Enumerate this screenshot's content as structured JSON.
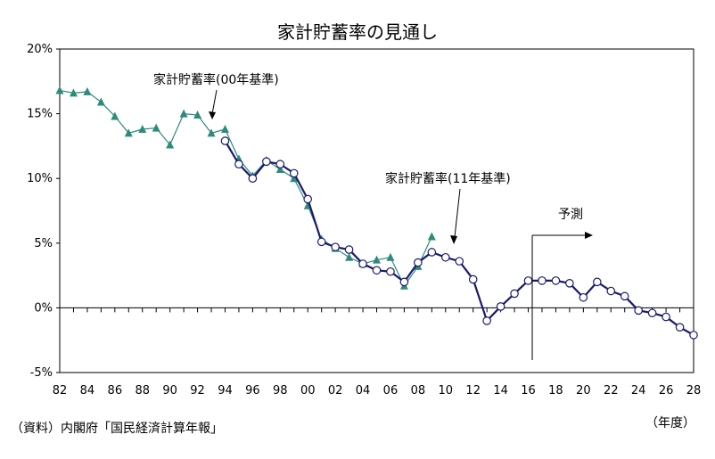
{
  "chart_data": {
    "type": "line",
    "title": "家計貯蓄率の見通し",
    "xlabel": "（年度）",
    "ylabel": "",
    "source": "（資料）内閣府「国民経済計算年報」",
    "ylim": [
      -5,
      20
    ],
    "xlim": [
      1982,
      2028
    ],
    "y_ticks": [
      "20%",
      "15%",
      "10%",
      "5%",
      "0%",
      "-5%"
    ],
    "y_tick_values": [
      20,
      15,
      10,
      5,
      0,
      -5
    ],
    "x_ticks": [
      "82",
      "84",
      "86",
      "88",
      "90",
      "92",
      "94",
      "96",
      "98",
      "00",
      "02",
      "04",
      "06",
      "08",
      "10",
      "12",
      "14",
      "16",
      "18",
      "20",
      "22",
      "24",
      "26",
      "28"
    ],
    "x_tick_values": [
      1982,
      1984,
      1986,
      1988,
      1990,
      1992,
      1994,
      1996,
      1998,
      2000,
      2002,
      2004,
      2006,
      2008,
      2010,
      2012,
      2014,
      2016,
      2018,
      2020,
      2022,
      2024,
      2026,
      2028
    ],
    "series": [
      {
        "name": "家計貯蓄率(00年基準)",
        "color": "#2e8b7a",
        "marker": "triangle",
        "x": [
          1982,
          1983,
          1984,
          1985,
          1986,
          1987,
          1988,
          1989,
          1990,
          1991,
          1992,
          1993,
          1994,
          1995,
          1996,
          1997,
          1998,
          1999,
          2000,
          2001,
          2002,
          2003,
          2004,
          2005,
          2006,
          2007,
          2008,
          2009
        ],
        "values": [
          16.8,
          16.6,
          16.7,
          15.9,
          14.8,
          13.5,
          13.8,
          13.9,
          12.6,
          15.0,
          14.9,
          13.5,
          13.8,
          11.5,
          10.2,
          11.4,
          10.7,
          10.0,
          7.9,
          5.3,
          4.6,
          3.9,
          3.4,
          3.7,
          3.9,
          1.7,
          3.2,
          5.5
        ]
      },
      {
        "name": "家計貯蓄率(11年基準)",
        "color": "#1a1a6e",
        "marker": "circle",
        "x": [
          1994,
          1995,
          1996,
          1997,
          1998,
          1999,
          2000,
          2001,
          2002,
          2003,
          2004,
          2005,
          2006,
          2007,
          2008,
          2009,
          2010,
          2011,
          2012,
          2013,
          2014,
          2015,
          2016,
          2017,
          2018,
          2019,
          2020,
          2021,
          2022,
          2023,
          2024,
          2025,
          2026,
          2027,
          2028
        ],
        "values": [
          12.9,
          11.1,
          10.0,
          11.3,
          11.1,
          10.4,
          8.4,
          5.1,
          4.7,
          4.5,
          3.4,
          2.9,
          2.8,
          2.0,
          3.5,
          4.3,
          3.9,
          3.6,
          2.2,
          -1.0,
          0.1,
          1.1,
          2.1,
          2.1,
          2.1,
          1.9,
          0.8,
          2.0,
          1.3,
          0.9,
          -0.2,
          -0.4,
          -0.7,
          -1.5,
          -2.1
        ]
      }
    ],
    "annotations": {
      "old_label": "家計貯蓄率(00年基準)",
      "new_label": "家計貯蓄率(11年基準)",
      "forecast_label": "予測"
    }
  }
}
